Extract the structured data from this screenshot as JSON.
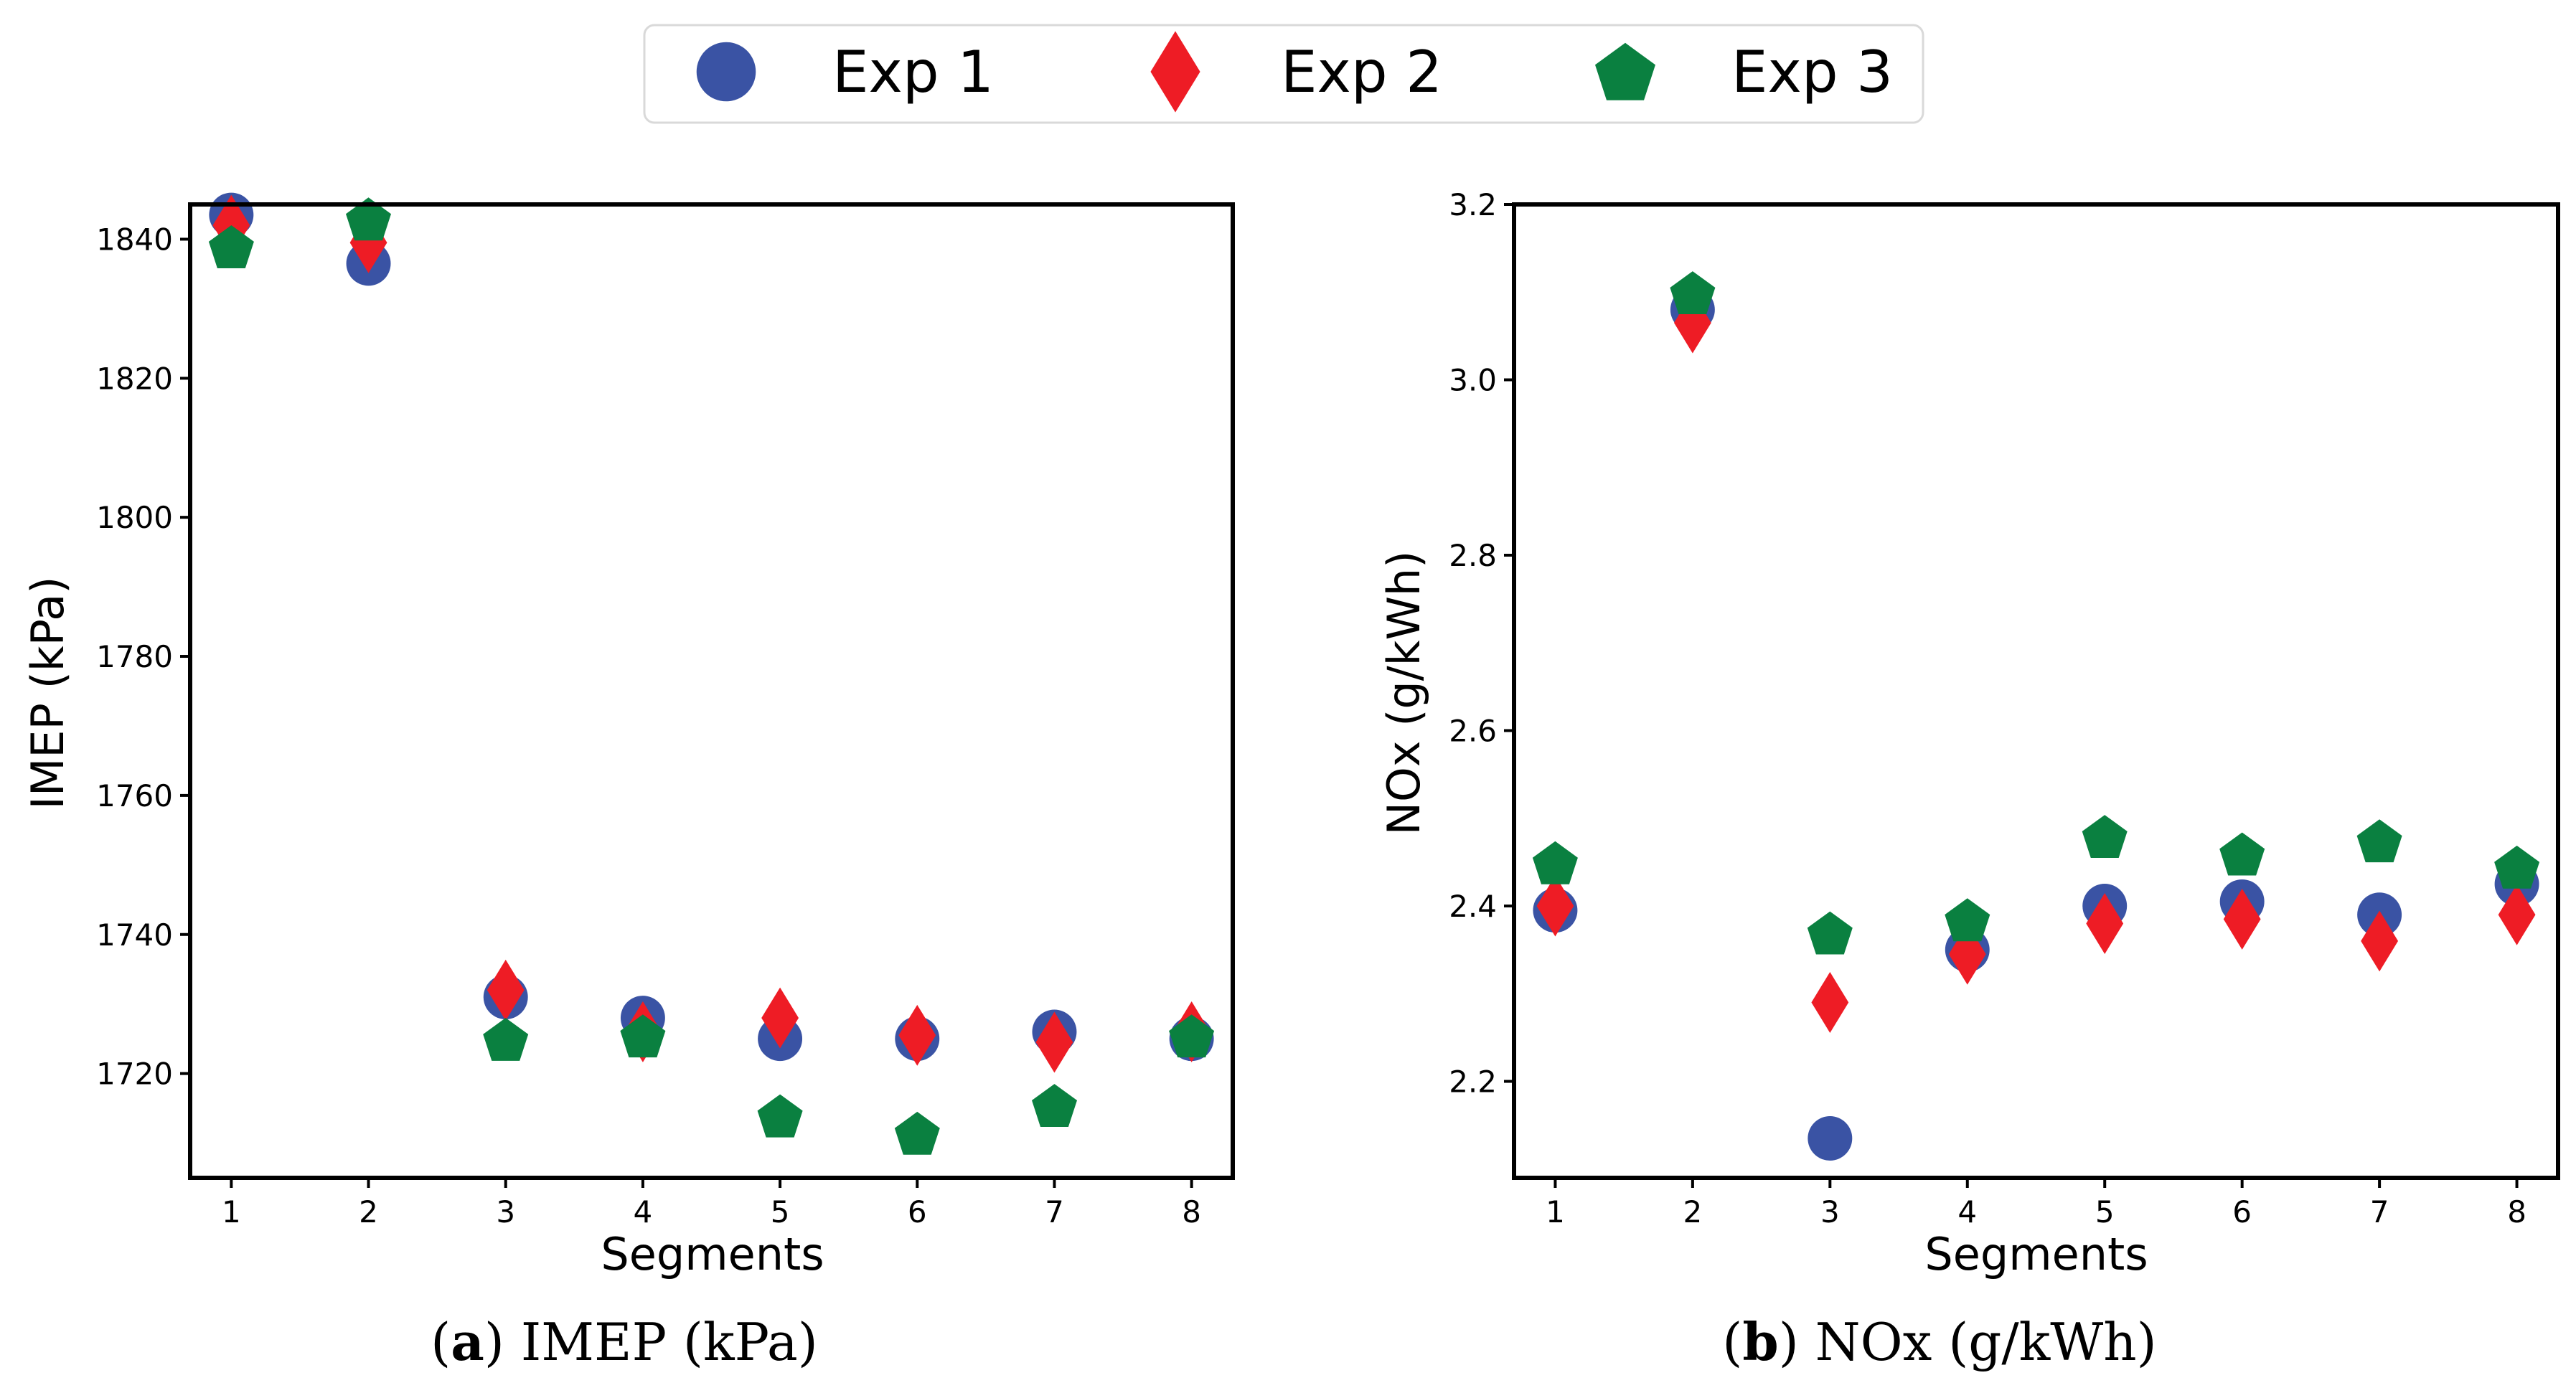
{
  "colors": {
    "exp1": "#3a53a4",
    "exp2": "#ee1c25",
    "exp3": "#0a8040",
    "axis": "#000000"
  },
  "legend": {
    "items": [
      {
        "label": "Exp 1",
        "marker": "circle"
      },
      {
        "label": "Exp 2",
        "marker": "diamond"
      },
      {
        "label": "Exp 3",
        "marker": "pentagon"
      }
    ],
    "placement": "top-center"
  },
  "chart_data": [
    {
      "type": "scatter",
      "xlabel": "Segments",
      "ylabel": "IMEP (kPa)",
      "xlim": [
        0.7,
        8.3
      ],
      "ylim": [
        1705,
        1845
      ],
      "xticks": [
        1,
        2,
        3,
        4,
        5,
        6,
        7,
        8
      ],
      "yticks": [
        1720,
        1740,
        1760,
        1780,
        1800,
        1820,
        1840
      ],
      "x": [
        1,
        2,
        3,
        4,
        5,
        6,
        7,
        8
      ],
      "series": [
        {
          "name": "Exp 1",
          "marker": "circle",
          "values": [
            1843.5,
            1836.5,
            1731,
            1728,
            1725,
            1725,
            1726,
            1725
          ]
        },
        {
          "name": "Exp 2",
          "marker": "diamond",
          "values": [
            1842,
            1839.5,
            1732,
            1726,
            1728,
            1725.5,
            1724.5,
            1726
          ]
        },
        {
          "name": "Exp 3",
          "marker": "pentagon",
          "values": [
            1839,
            1843,
            1725,
            1725.5,
            1714,
            1711.5,
            1715.5,
            1725.5
          ]
        }
      ],
      "caption_letter": "a",
      "caption_text": " IMEP (kPa)"
    },
    {
      "type": "scatter",
      "xlabel": "Segments",
      "ylabel": "NOx (g/kWh)",
      "xlim": [
        0.7,
        8.3
      ],
      "ylim": [
        2.09,
        3.2
      ],
      "xticks": [
        1,
        2,
        3,
        4,
        5,
        6,
        7,
        8
      ],
      "yticks": [
        2.2,
        2.4,
        2.6,
        2.8,
        3.0,
        3.2
      ],
      "ytick_labels": [
        "2.2",
        "2.4",
        "2.6",
        "2.8",
        "3.0",
        "3.2"
      ],
      "x": [
        1,
        2,
        3,
        4,
        5,
        6,
        7,
        8
      ],
      "series": [
        {
          "name": "Exp 1",
          "marker": "circle",
          "values": [
            2.395,
            3.08,
            2.135,
            2.35,
            2.4,
            2.405,
            2.39,
            2.425
          ]
        },
        {
          "name": "Exp 2",
          "marker": "diamond",
          "values": [
            2.4,
            3.065,
            2.29,
            2.345,
            2.38,
            2.385,
            2.36,
            2.39
          ]
        },
        {
          "name": "Exp 3",
          "marker": "pentagon",
          "values": [
            2.45,
            3.1,
            2.37,
            2.385,
            2.48,
            2.46,
            2.475,
            2.445
          ]
        }
      ],
      "caption_letter": "b",
      "caption_text": " NOx (g/kWh)"
    }
  ]
}
